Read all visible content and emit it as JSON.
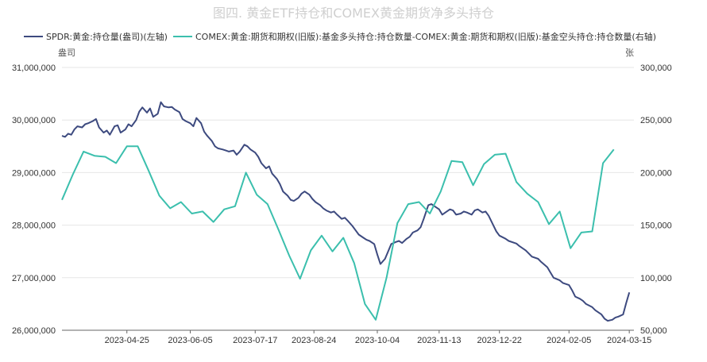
{
  "chart_data": {
    "type": "line",
    "title": "图四. 黄金ETF持仓和COMEX黄金期货净多头持仓",
    "left_unit": "盎司",
    "right_unit": "张",
    "x_tick_labels": [
      "2023-04-25",
      "2023-06-05",
      "2023-07-17",
      "2023-08-24",
      "2023-10-04",
      "2023-11-13",
      "2023-12-22",
      "2024-02-05",
      "2024-03-15"
    ],
    "y_left": {
      "ticks": [
        "26,000,000",
        "27,000,000",
        "28,000,000",
        "29,000,000",
        "30,000,000",
        "31,000,000"
      ],
      "ylim": [
        26000000,
        31000000
      ]
    },
    "y_right": {
      "ticks": [
        "50,000",
        "100,000",
        "150,000",
        "200,000",
        "250,000",
        "300,000"
      ],
      "ylim": [
        50000,
        300000
      ]
    },
    "xlim": [
      "2023-03-14",
      "2024-03-18"
    ],
    "series": [
      {
        "name": "SPDR:黄金:持仓量(盎司)(左轴)",
        "axis": "left",
        "color": "#3d4a7f",
        "points": [
          [
            "2023-03-14",
            29700000
          ],
          [
            "2023-03-16",
            29680000
          ],
          [
            "2023-03-18",
            29740000
          ],
          [
            "2023-03-20",
            29720000
          ],
          [
            "2023-03-22",
            29820000
          ],
          [
            "2023-03-24",
            29880000
          ],
          [
            "2023-03-27",
            29860000
          ],
          [
            "2023-03-29",
            29920000
          ],
          [
            "2023-03-31",
            29940000
          ],
          [
            "2023-04-03",
            29980000
          ],
          [
            "2023-04-05",
            30020000
          ],
          [
            "2023-04-07",
            29860000
          ],
          [
            "2023-04-10",
            29760000
          ],
          [
            "2023-04-12",
            29800000
          ],
          [
            "2023-04-14",
            29720000
          ],
          [
            "2023-04-17",
            29880000
          ],
          [
            "2023-04-19",
            29900000
          ],
          [
            "2023-04-21",
            29760000
          ],
          [
            "2023-04-24",
            29820000
          ],
          [
            "2023-04-26",
            29920000
          ],
          [
            "2023-04-28",
            29880000
          ],
          [
            "2023-05-01",
            30000000
          ],
          [
            "2023-05-03",
            30160000
          ],
          [
            "2023-05-05",
            30240000
          ],
          [
            "2023-05-08",
            30140000
          ],
          [
            "2023-05-10",
            30220000
          ],
          [
            "2023-05-12",
            30060000
          ],
          [
            "2023-05-15",
            30120000
          ],
          [
            "2023-05-17",
            30340000
          ],
          [
            "2023-05-19",
            30260000
          ],
          [
            "2023-05-22",
            30240000
          ],
          [
            "2023-05-24",
            30250000
          ],
          [
            "2023-05-26",
            30200000
          ],
          [
            "2023-05-29",
            30150000
          ],
          [
            "2023-05-31",
            30020000
          ],
          [
            "2023-06-02",
            29980000
          ],
          [
            "2023-06-05",
            29940000
          ],
          [
            "2023-06-07",
            29880000
          ],
          [
            "2023-06-09",
            30040000
          ],
          [
            "2023-06-12",
            29940000
          ],
          [
            "2023-06-14",
            29780000
          ],
          [
            "2023-06-16",
            29700000
          ],
          [
            "2023-06-19",
            29600000
          ],
          [
            "2023-06-21",
            29500000
          ],
          [
            "2023-06-23",
            29460000
          ],
          [
            "2023-06-26",
            29440000
          ],
          [
            "2023-06-28",
            29420000
          ],
          [
            "2023-06-30",
            29400000
          ],
          [
            "2023-07-03",
            29420000
          ],
          [
            "2023-07-05",
            29340000
          ],
          [
            "2023-07-07",
            29400000
          ],
          [
            "2023-07-10",
            29530000
          ],
          [
            "2023-07-12",
            29500000
          ],
          [
            "2023-07-14",
            29440000
          ],
          [
            "2023-07-17",
            29380000
          ],
          [
            "2023-07-19",
            29300000
          ],
          [
            "2023-07-21",
            29180000
          ],
          [
            "2023-07-24",
            29080000
          ],
          [
            "2023-07-26",
            29120000
          ],
          [
            "2023-07-28",
            28980000
          ],
          [
            "2023-07-31",
            28880000
          ],
          [
            "2023-08-02",
            28780000
          ],
          [
            "2023-08-04",
            28640000
          ],
          [
            "2023-08-07",
            28560000
          ],
          [
            "2023-08-09",
            28480000
          ],
          [
            "2023-08-11",
            28460000
          ],
          [
            "2023-08-14",
            28520000
          ],
          [
            "2023-08-16",
            28600000
          ],
          [
            "2023-08-18",
            28640000
          ],
          [
            "2023-08-21",
            28580000
          ],
          [
            "2023-08-23",
            28500000
          ],
          [
            "2023-08-25",
            28440000
          ],
          [
            "2023-08-28",
            28380000
          ],
          [
            "2023-08-30",
            28320000
          ],
          [
            "2023-09-01",
            28280000
          ],
          [
            "2023-09-04",
            28240000
          ],
          [
            "2023-09-06",
            28260000
          ],
          [
            "2023-09-08",
            28200000
          ],
          [
            "2023-09-11",
            28120000
          ],
          [
            "2023-09-13",
            28140000
          ],
          [
            "2023-09-15",
            28080000
          ],
          [
            "2023-09-18",
            27980000
          ],
          [
            "2023-09-20",
            27900000
          ],
          [
            "2023-09-22",
            27820000
          ],
          [
            "2023-09-25",
            27760000
          ],
          [
            "2023-09-27",
            27720000
          ],
          [
            "2023-09-29",
            27700000
          ],
          [
            "2023-10-02",
            27640000
          ],
          [
            "2023-10-04",
            27440000
          ],
          [
            "2023-10-06",
            27260000
          ],
          [
            "2023-10-09",
            27360000
          ],
          [
            "2023-10-11",
            27500000
          ],
          [
            "2023-10-13",
            27640000
          ],
          [
            "2023-10-16",
            27680000
          ],
          [
            "2023-10-18",
            27700000
          ],
          [
            "2023-10-20",
            27660000
          ],
          [
            "2023-10-23",
            27740000
          ],
          [
            "2023-10-25",
            27780000
          ],
          [
            "2023-10-27",
            27860000
          ],
          [
            "2023-10-30",
            27900000
          ],
          [
            "2023-11-01",
            27960000
          ],
          [
            "2023-11-03",
            28120000
          ],
          [
            "2023-11-06",
            28380000
          ],
          [
            "2023-11-08",
            28400000
          ],
          [
            "2023-11-10",
            28360000
          ],
          [
            "2023-11-13",
            28300000
          ],
          [
            "2023-11-15",
            28200000
          ],
          [
            "2023-11-17",
            28240000
          ],
          [
            "2023-11-20",
            28300000
          ],
          [
            "2023-11-22",
            28280000
          ],
          [
            "2023-11-24",
            28200000
          ],
          [
            "2023-11-27",
            28220000
          ],
          [
            "2023-11-29",
            28260000
          ],
          [
            "2023-12-01",
            28240000
          ],
          [
            "2023-12-04",
            28200000
          ],
          [
            "2023-12-06",
            28280000
          ],
          [
            "2023-12-08",
            28300000
          ],
          [
            "2023-12-11",
            28240000
          ],
          [
            "2023-12-13",
            28260000
          ],
          [
            "2023-12-15",
            28180000
          ],
          [
            "2023-12-18",
            28000000
          ],
          [
            "2023-12-20",
            27880000
          ],
          [
            "2023-12-22",
            27800000
          ],
          [
            "2023-12-26",
            27740000
          ],
          [
            "2023-12-28",
            27700000
          ],
          [
            "2024-01-02",
            27650000
          ],
          [
            "2024-01-04",
            27600000
          ],
          [
            "2024-01-08",
            27520000
          ],
          [
            "2024-01-10",
            27460000
          ],
          [
            "2024-01-12",
            27400000
          ],
          [
            "2024-01-16",
            27360000
          ],
          [
            "2024-01-18",
            27300000
          ],
          [
            "2024-01-22",
            27200000
          ],
          [
            "2024-01-24",
            27100000
          ],
          [
            "2024-01-26",
            27000000
          ],
          [
            "2024-01-30",
            26950000
          ],
          [
            "2024-02-01",
            26900000
          ],
          [
            "2024-02-05",
            26860000
          ],
          [
            "2024-02-07",
            26760000
          ],
          [
            "2024-02-09",
            26640000
          ],
          [
            "2024-02-12",
            26600000
          ],
          [
            "2024-02-14",
            26560000
          ],
          [
            "2024-02-16",
            26500000
          ],
          [
            "2024-02-20",
            26440000
          ],
          [
            "2024-02-22",
            26380000
          ],
          [
            "2024-02-26",
            26300000
          ],
          [
            "2024-02-28",
            26220000
          ],
          [
            "2024-03-01",
            26180000
          ],
          [
            "2024-03-04",
            26200000
          ],
          [
            "2024-03-06",
            26240000
          ],
          [
            "2024-03-08",
            26260000
          ],
          [
            "2024-03-11",
            26300000
          ],
          [
            "2024-03-13",
            26520000
          ],
          [
            "2024-03-15",
            26720000
          ]
        ]
      },
      {
        "name": "COMEX:黄金:期货和期权(旧版):基金多头持仓:持仓数量-COMEX:黄金:期货和期权(旧版):基金空头持仓:持仓数量(右轴)",
        "axis": "right",
        "color": "#3bbfad",
        "points": [
          [
            "2023-03-14",
            174000
          ],
          [
            "2023-03-21",
            198000
          ],
          [
            "2023-03-28",
            220000
          ],
          [
            "2023-04-04",
            216000
          ],
          [
            "2023-04-11",
            215000
          ],
          [
            "2023-04-18",
            209000
          ],
          [
            "2023-04-25",
            225000
          ],
          [
            "2023-05-02",
            225000
          ],
          [
            "2023-05-09",
            202000
          ],
          [
            "2023-05-16",
            178000
          ],
          [
            "2023-05-23",
            166000
          ],
          [
            "2023-05-30",
            172000
          ],
          [
            "2023-06-06",
            161000
          ],
          [
            "2023-06-13",
            163000
          ],
          [
            "2023-06-20",
            153000
          ],
          [
            "2023-06-27",
            165000
          ],
          [
            "2023-07-04",
            168000
          ],
          [
            "2023-07-11",
            200000
          ],
          [
            "2023-07-18",
            179000
          ],
          [
            "2023-07-25",
            170000
          ],
          [
            "2023-08-01",
            146000
          ],
          [
            "2023-08-08",
            121000
          ],
          [
            "2023-08-15",
            99000
          ],
          [
            "2023-08-22",
            126000
          ],
          [
            "2023-08-29",
            140000
          ],
          [
            "2023-09-05",
            125000
          ],
          [
            "2023-09-12",
            138000
          ],
          [
            "2023-09-19",
            114000
          ],
          [
            "2023-09-26",
            75000
          ],
          [
            "2023-10-03",
            60000
          ],
          [
            "2023-10-10",
            100000
          ],
          [
            "2023-10-17",
            152000
          ],
          [
            "2023-10-24",
            170000
          ],
          [
            "2023-10-31",
            172000
          ],
          [
            "2023-11-07",
            161000
          ],
          [
            "2023-11-14",
            182000
          ],
          [
            "2023-11-21",
            211000
          ],
          [
            "2023-11-28",
            210000
          ],
          [
            "2023-12-05",
            188000
          ],
          [
            "2023-12-12",
            208000
          ],
          [
            "2023-12-19",
            217000
          ],
          [
            "2023-12-26",
            218000
          ],
          [
            "2024-01-02",
            191000
          ],
          [
            "2024-01-09",
            180000
          ],
          [
            "2024-01-16",
            172000
          ],
          [
            "2024-01-23",
            151000
          ],
          [
            "2024-01-30",
            163000
          ],
          [
            "2024-02-06",
            128000
          ],
          [
            "2024-02-13",
            143000
          ],
          [
            "2024-02-20",
            144000
          ],
          [
            "2024-02-27",
            209000
          ],
          [
            "2024-03-05",
            222000
          ]
        ]
      }
    ]
  }
}
